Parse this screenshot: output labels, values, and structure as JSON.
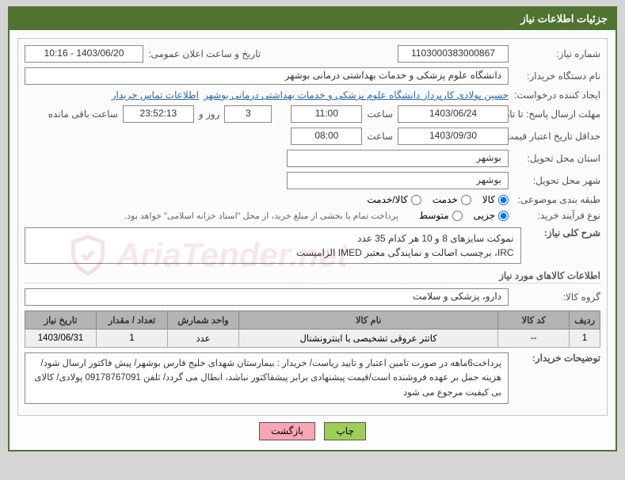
{
  "panel_title": "جزئیات اطلاعات نیاز",
  "need_number_label": "شماره نیاز:",
  "need_number": "1103000383000867",
  "announce_label": "تاریخ و ساعت اعلان عمومی:",
  "announce_value": "1403/06/20 - 10:16",
  "buyer_org_label": "نام دستگاه خریدار:",
  "buyer_org": "دانشگاه علوم پزشکی و خدمات بهداشتی درمانی بوشهر",
  "requester_label": "ایجاد کننده درخواست:",
  "requester": "حسین پولادی کارپرداز دانشگاه علوم پزشکی و خدمات بهداشتی درمانی بوشهر",
  "contact_link": "اطلاعات تماس خریدار",
  "deadline_label": "مهلت ارسال پاسخ: تا تاریخ:",
  "deadline_date": "1403/06/24",
  "time_label": "ساعت",
  "deadline_time": "11:00",
  "countdown_days": "3",
  "countdown_days_suffix": "روز و",
  "countdown_time": "23:52:13",
  "countdown_suffix": "ساعت باقی مانده",
  "validity_label": "حداقل تاریخ اعتبار قیمت: تا تاریخ:",
  "validity_date": "1403/09/30",
  "validity_time": "08:00",
  "province_label": "استان محل تحویل:",
  "province": "بوشهر",
  "city_label": "شهر محل تحویل:",
  "city": "بوشهر",
  "category_label": "طبقه بندی موضوعی:",
  "cat_goods": "کالا",
  "cat_service": "خدمت",
  "cat_goods_service": "کالا/خدمت",
  "process_label": "نوع فرآیند خرید:",
  "proc_small": "جزیی",
  "proc_medium": "متوسط",
  "process_note": "پرداخت تمام یا بخشی از مبلغ خرید، از محل \"اسناد خزانه اسلامی\" خواهد بود.",
  "general_desc_label": "شرح کلی نیاز:",
  "general_desc_line1": "نموکت سایزهای 8 و 10 هر کدام 35 عدد",
  "general_desc_line2": "IRC، برچسب اصالت و نمایندگی معتبر IMED الزامیست",
  "goods_section_title": "اطلاعات کالاهای مورد نیاز",
  "goods_group_label": "گروه کالا:",
  "goods_group": "دارو، پزشکی و سلامت",
  "table": {
    "columns": [
      "ردیف",
      "کد کالا",
      "نام کالا",
      "واحد شمارش",
      "تعداد / مقدار",
      "تاریخ نیاز"
    ],
    "rows": [
      [
        "1",
        "--",
        "کاتتر عروقی تشخیصی یا اینترونشنال",
        "عدد",
        "1",
        "1403/06/31"
      ]
    ]
  },
  "buyer_note_label": "توضیحات خریدار:",
  "buyer_note": "پرداخت6ماهه در صورت تامین اعتبار و تایید ریاست/ خریدار : بیمارستان شهدای خلیج فارس بوشهر/ پیش فاکتور ارسال شود/ هزینه حمل بر عهده فروشنده است/قیمت پیشنهادی برابر پیشفاکتور نباشد، ابطال می گردد/ تلفن 09178767091 پولادی/ کالای بی کیفیت مرجوع می شود",
  "btn_print": "چاپ",
  "btn_back": "بازگشت",
  "watermark_text": "AriaTender.net"
}
